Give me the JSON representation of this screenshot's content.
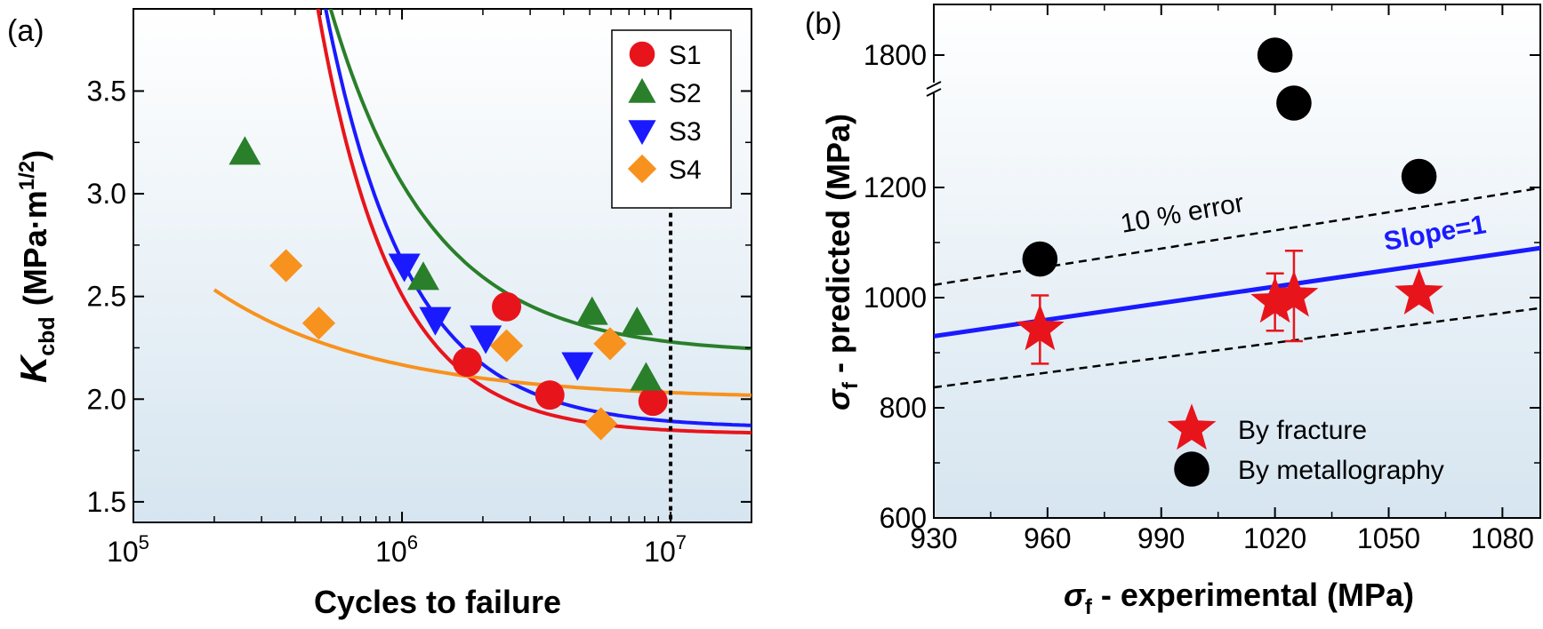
{
  "chart_data": [
    {
      "panel_label": "(a)",
      "type": "scatter",
      "x_scale": "log",
      "xlabel": "Cycles to failure",
      "ylabel_main": "K",
      "ylabel_sub": "cbd",
      "ylabel_units": "(MPa·m",
      "ylabel_units_sup": "1/2",
      "ylabel_units_close": ")",
      "xlim": [
        100000,
        20000000
      ],
      "ylim": [
        1.4,
        3.9
      ],
      "x_ticks": [
        {
          "value": 100000,
          "base": "10",
          "exp": "5"
        },
        {
          "value": 1000000,
          "base": "10",
          "exp": "6"
        },
        {
          "value": 10000000,
          "base": "10",
          "exp": "7"
        }
      ],
      "y_ticks": [
        {
          "value": 1.5,
          "label": "1.5"
        },
        {
          "value": 2.0,
          "label": "2.0"
        },
        {
          "value": 2.5,
          "label": "2.5"
        },
        {
          "value": 3.0,
          "label": "3.0"
        },
        {
          "value": 3.5,
          "label": "3.5"
        }
      ],
      "vertical_line_x": 10000000,
      "legend_position": "top-right",
      "series": [
        {
          "name": "S1",
          "marker": "circle",
          "color": "#e8141c",
          "points": [
            [
              1750000,
              2.18
            ],
            [
              2450000,
              2.45
            ],
            [
              3550000,
              2.02
            ],
            [
              8600000,
              1.99
            ]
          ],
          "fit": {
            "a": 1.83,
            "b": 1350000000.0,
            "c": 1.55,
            "xrange": [
              350000,
              20000000
            ]
          }
        },
        {
          "name": "S2",
          "marker": "triangle-up",
          "color": "#2a7f2a",
          "points": [
            [
              260000,
              3.2
            ],
            [
              1200000,
              2.59
            ],
            [
              5100000,
              2.42
            ],
            [
              7500000,
              2.37
            ],
            [
              8100000,
              2.1
            ]
          ],
          "fit": {
            "a": 2.22,
            "b": 6600000.0,
            "c": 1.15,
            "xrange": [
              230000,
              20000000
            ]
          }
        },
        {
          "name": "S3",
          "marker": "triangle-down",
          "color": "#1a1aff",
          "points": [
            [
              1020000,
              2.65
            ],
            [
              1330000,
              2.39
            ],
            [
              2050000,
              2.3
            ],
            [
              4500000,
              2.17
            ]
          ],
          "fit": {
            "a": 1.86,
            "b": 205000000.0,
            "c": 1.4,
            "xrange": [
              400000,
              20000000
            ]
          }
        },
        {
          "name": "S4",
          "marker": "diamond",
          "color": "#f7921e",
          "points": [
            [
              370000,
              2.65
            ],
            [
              490000,
              2.37
            ],
            [
              2450000,
              2.26
            ],
            [
              5500000,
              1.88
            ],
            [
              5950000,
              2.27
            ]
          ],
          "fit": {
            "a": 2.0,
            "b": 3490.0,
            "c": 0.72,
            "xrange": [
              200000,
              20000000
            ]
          }
        }
      ]
    },
    {
      "panel_label": "(b)",
      "type": "scatter",
      "xlabel_symbol": "σ",
      "xlabel_sub": "f",
      "xlabel_rest": " - experimental  (MPa)",
      "ylabel_symbol": "σ",
      "ylabel_sub": "f",
      "ylabel_rest": " - predicted  (MPa)",
      "xlim": [
        930,
        1090
      ],
      "ylim": [
        600,
        1900
      ],
      "y_axis_break": {
        "lower_max": 1300,
        "upper_min": 1750,
        "upper_max": 1850
      },
      "x_ticks": [
        {
          "value": 930,
          "label": "930"
        },
        {
          "value": 960,
          "label": "960"
        },
        {
          "value": 990,
          "label": "990"
        },
        {
          "value": 1020,
          "label": "1020"
        },
        {
          "value": 1050,
          "label": "1050"
        },
        {
          "value": 1080,
          "label": "1080"
        }
      ],
      "y_ticks": [
        {
          "value": 600,
          "label": "600"
        },
        {
          "value": 800,
          "label": "800"
        },
        {
          "value": 1000,
          "label": "1000"
        },
        {
          "value": 1200,
          "label": "1200"
        },
        {
          "value": 1800,
          "label": "1800"
        }
      ],
      "slope_line_label": "Slope=1",
      "error_band_label": "10 % error",
      "error_band_fraction": 0.1,
      "legend_position": "bottom-right",
      "series": [
        {
          "name": "By fracture",
          "marker": "star",
          "color": "#e8141c",
          "points": [
            {
              "x": 958,
              "y": 942,
              "err": 62
            },
            {
              "x": 1020,
              "y": 992,
              "err": 52
            },
            {
              "x": 1025,
              "y": 1003,
              "err": 82
            },
            {
              "x": 1058,
              "y": 1007,
              "err": 0
            }
          ]
        },
        {
          "name": "By metallography",
          "marker": "circle",
          "color": "#000000",
          "points": [
            {
              "x": 958,
              "y": 1070
            },
            {
              "x": 1020,
              "y": 1800
            },
            {
              "x": 1025,
              "y": 1345
            },
            {
              "x": 1058,
              "y": 1220
            }
          ]
        }
      ]
    }
  ]
}
